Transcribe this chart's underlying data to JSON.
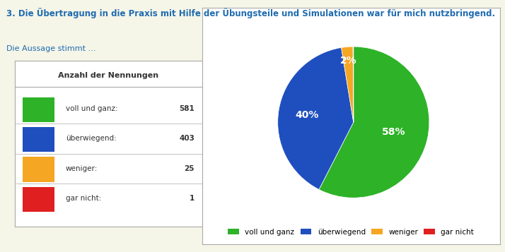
{
  "title": "3. Die Übertragung in die Praxis mit Hilfe der Übungsteile und Simulationen war für mich nutzbringend.",
  "subtitle": "Die Aussage stimmt ...",
  "labels": [
    "voll und ganz",
    "überwiegend",
    "weniger",
    "gar nicht"
  ],
  "values": [
    581,
    403,
    25,
    1
  ],
  "colors": [
    "#2DB228",
    "#1F4FBE",
    "#F5A623",
    "#E02020"
  ],
  "bg_color": "#F5F5E8",
  "table_header": "Anzahl der Nennungen",
  "title_color": "#1F6BB0",
  "subtitle_color": "#1F6BB0",
  "text_color": "#333333",
  "row_labels": [
    "voll und ganz:",
    "überwiegend:",
    "weniger:",
    "gar nicht:"
  ],
  "legend_labels": [
    "voll und ganz",
    "überwiegend",
    "weniger",
    "gar nicht"
  ]
}
